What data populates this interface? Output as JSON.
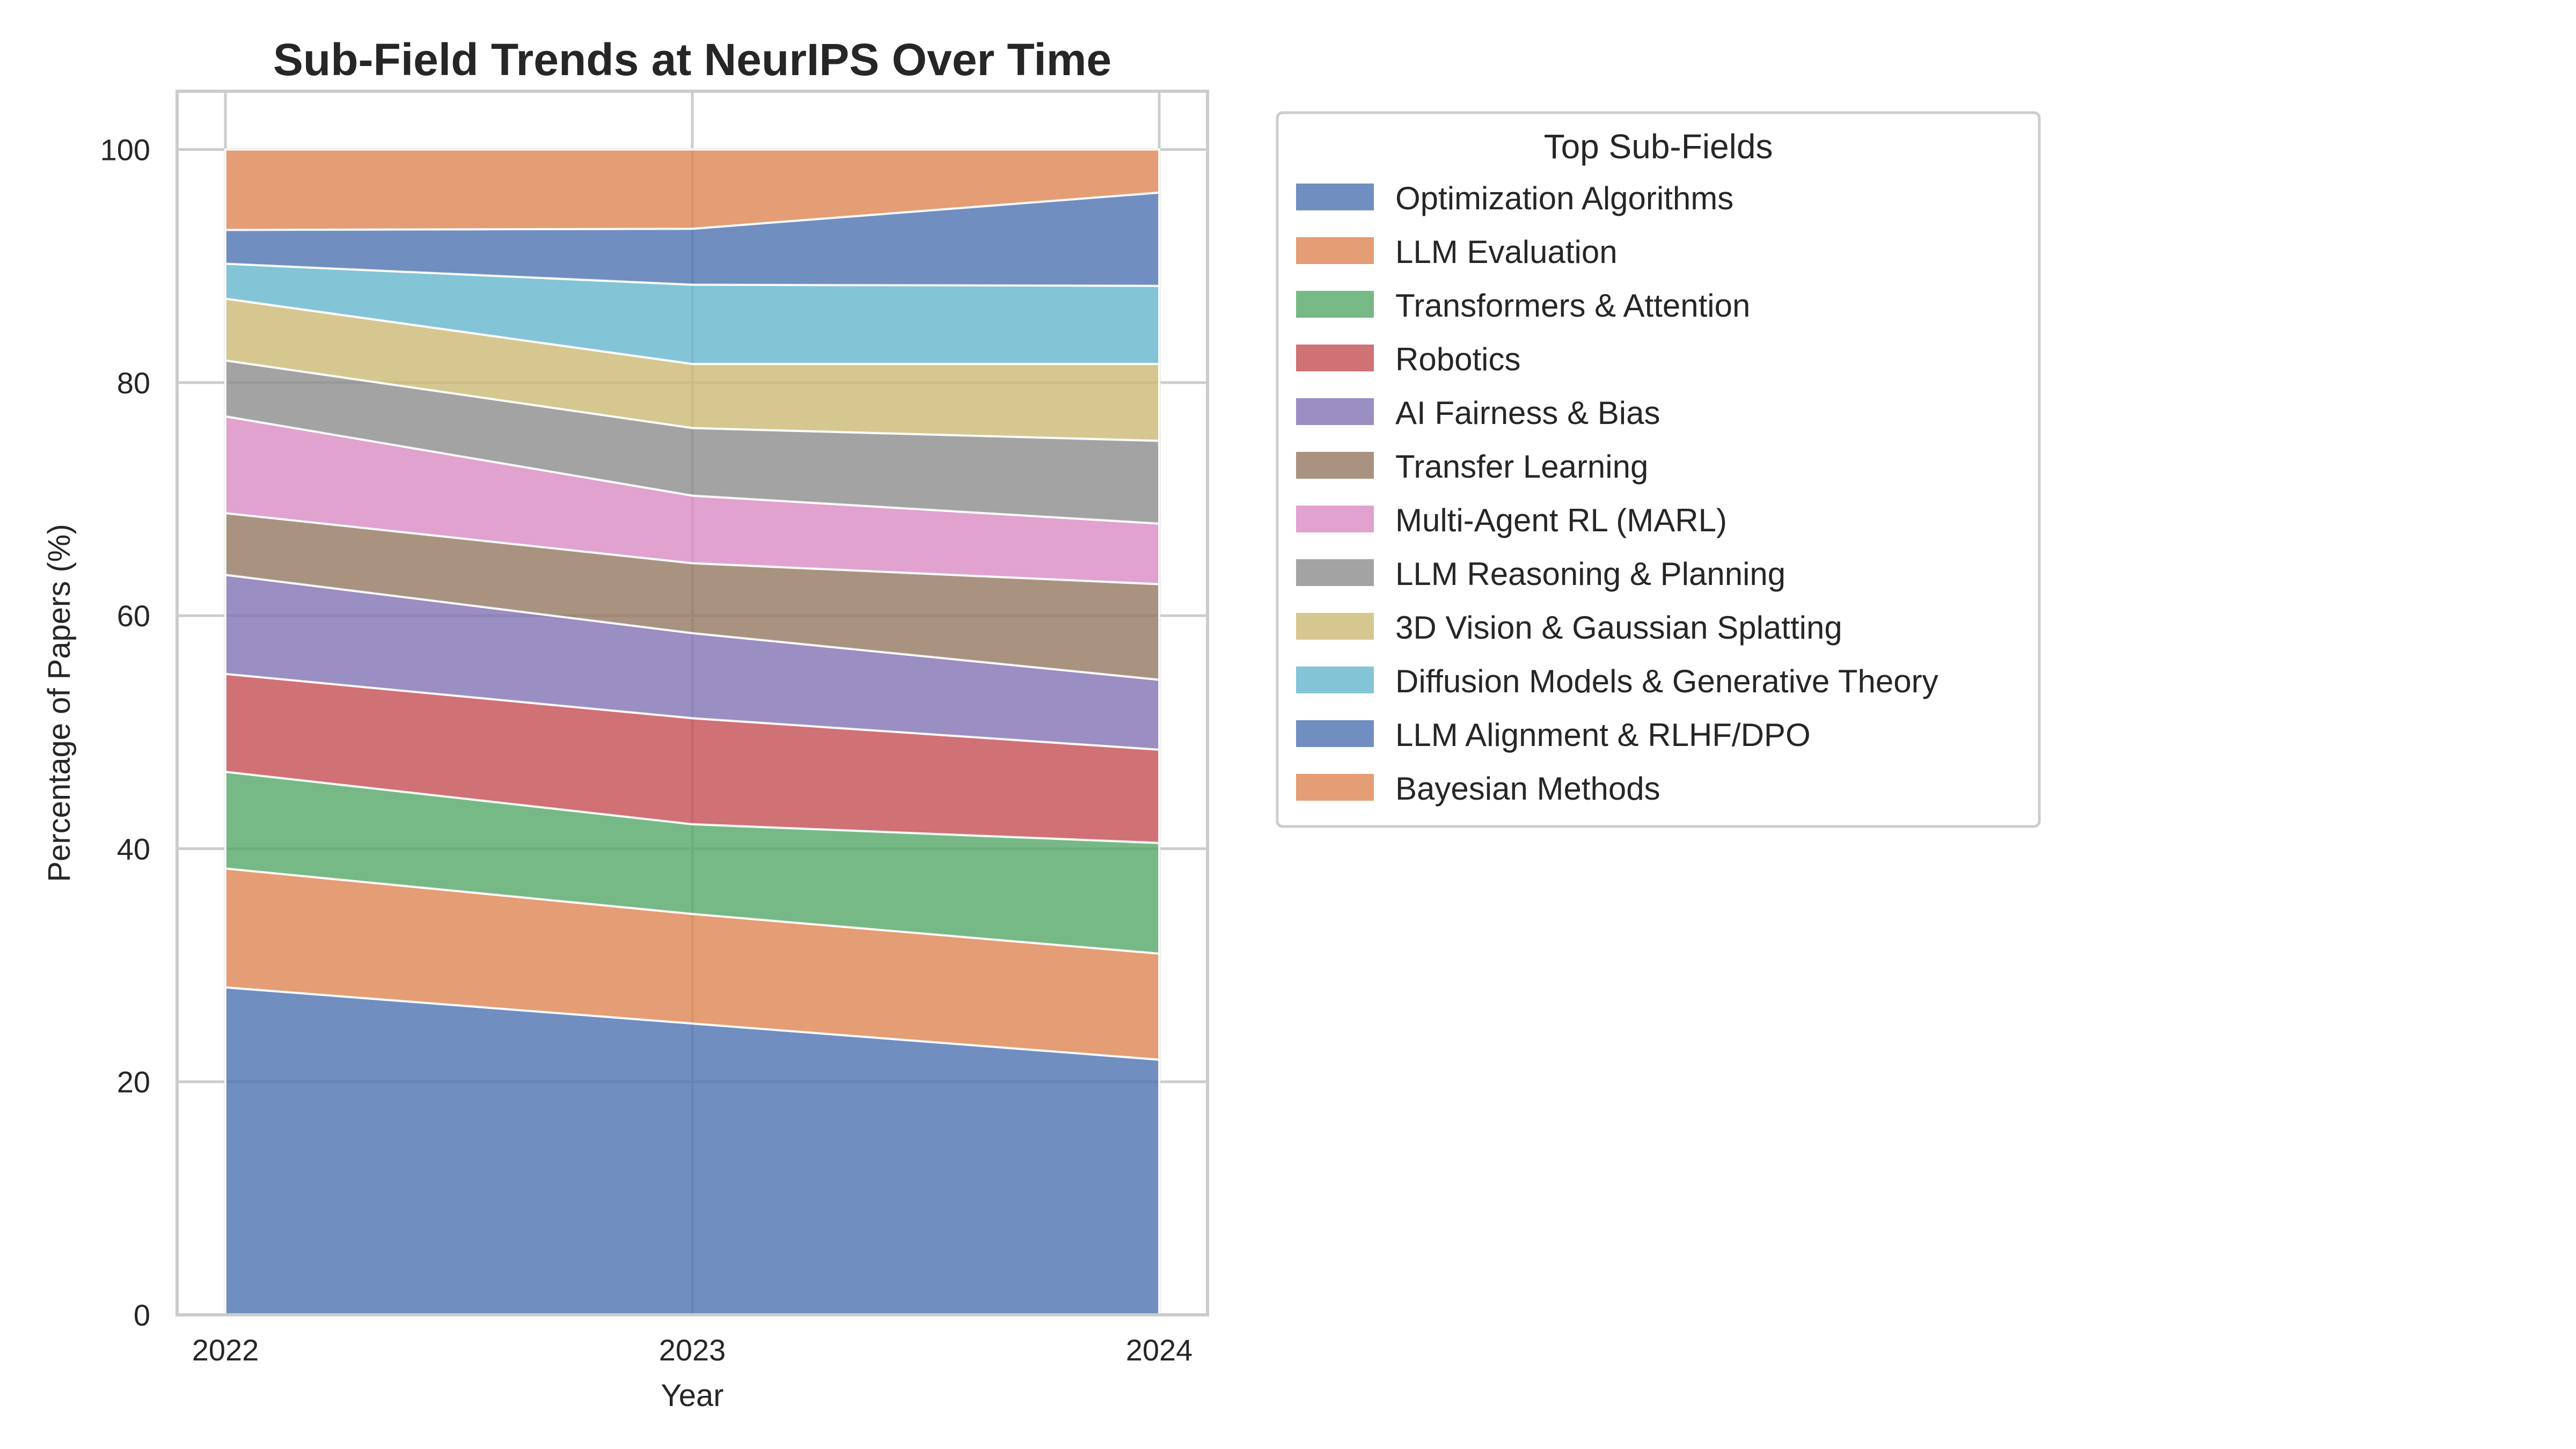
{
  "chart_data": {
    "type": "area",
    "stacked": true,
    "title": "Sub-Field Trends at NeurIPS Over Time",
    "xlabel": "Year",
    "ylabel": "Percentage of Papers (%)",
    "x": [
      "2022",
      "2023",
      "2024"
    ],
    "ylim": [
      0,
      105
    ],
    "yticks": [
      0,
      20,
      40,
      60,
      80,
      100
    ],
    "grid": true,
    "legend": {
      "title": "Top Sub-Fields",
      "placement": "outside-right"
    },
    "series": [
      {
        "name": "Optimization Algorithms",
        "color": "#4c72b0",
        "values": [
          28.1,
          25.0,
          21.9
        ]
      },
      {
        "name": "LLM Evaluation",
        "color": "#dd8452",
        "values": [
          10.2,
          9.4,
          9.1
        ]
      },
      {
        "name": "Transformers & Attention",
        "color": "#55a868",
        "values": [
          8.3,
          7.7,
          9.5
        ]
      },
      {
        "name": "Robotics",
        "color": "#c44e52",
        "values": [
          8.4,
          9.1,
          8.0
        ]
      },
      {
        "name": "AI Fairness & Bias",
        "color": "#8172b3",
        "values": [
          8.5,
          7.3,
          6.0
        ]
      },
      {
        "name": "Transfer Learning",
        "color": "#937860",
        "values": [
          5.3,
          6.0,
          8.2
        ]
      },
      {
        "name": "Multi-Agent RL (MARL)",
        "color": "#da8bc3",
        "values": [
          8.3,
          5.8,
          5.2
        ]
      },
      {
        "name": "LLM Reasoning & Planning",
        "color": "#8c8c8c",
        "values": [
          4.8,
          5.8,
          7.1
        ]
      },
      {
        "name": "3D Vision & Gaussian Splatting",
        "color": "#ccb974",
        "values": [
          5.3,
          5.5,
          6.6
        ]
      },
      {
        "name": "Diffusion Models & Generative Theory",
        "color": "#64b5cd",
        "values": [
          3.0,
          6.8,
          6.7
        ]
      },
      {
        "name": "LLM Alignment & RLHF/DPO",
        "color": "#4c72b0",
        "values": [
          2.9,
          4.8,
          8.0
        ]
      },
      {
        "name": "Bayesian Methods",
        "color": "#dd8452",
        "values": [
          6.9,
          6.8,
          3.7
        ]
      }
    ]
  }
}
